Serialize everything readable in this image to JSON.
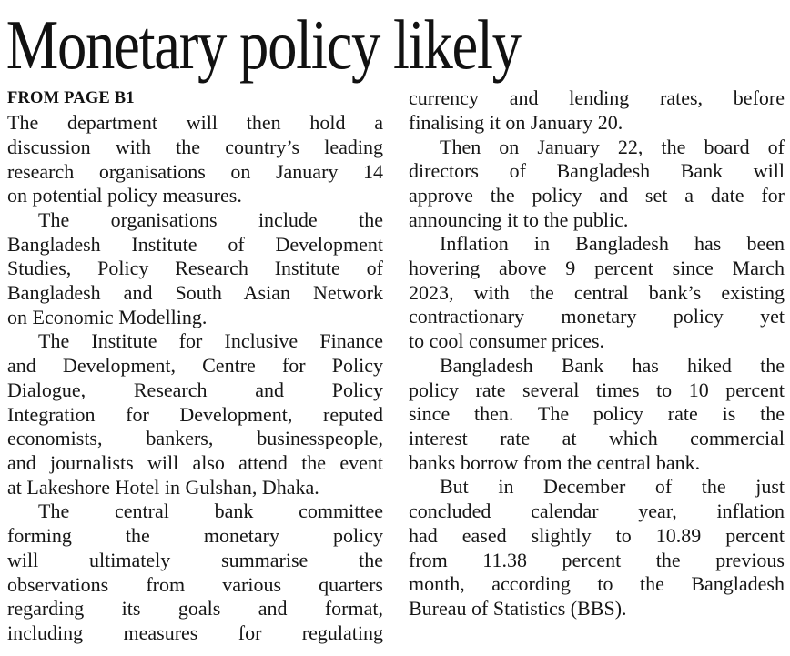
{
  "article": {
    "headline": "Monetary policy likely",
    "kicker": "FROM PAGE B1",
    "colors": {
      "background": "#ffffff",
      "text": "#161616"
    },
    "columns": [
      {
        "side": "left",
        "paragraphs": [
          {
            "indent": false,
            "continues": false,
            "lines": [
              "The department will then hold a",
              "discussion with the country’s leading",
              "research organisations on January 14",
              "on potential policy measures."
            ]
          },
          {
            "indent": true,
            "continues": false,
            "lines": [
              "The organisations include the",
              "Bangladesh Institute of Development",
              "Studies, Policy Research Institute of",
              "Bangladesh and South Asian Network",
              "on Economic Modelling."
            ]
          },
          {
            "indent": true,
            "continues": false,
            "lines": [
              "The Institute for Inclusive Finance",
              "and Development, Centre for Policy",
              "Dialogue, Research and Policy",
              "Integration for Development, reputed",
              "economists, bankers, businesspeople,",
              "and journalists will also attend the event",
              "at Lakeshore Hotel in Gulshan, Dhaka."
            ]
          },
          {
            "indent": true,
            "continues": true,
            "lines": [
              "The central bank committee",
              "forming the monetary policy",
              "will ultimately summarise the",
              "observations from various quarters",
              "regarding its goals and format,",
              "including measures for regulating"
            ]
          }
        ]
      },
      {
        "side": "right",
        "paragraphs": [
          {
            "indent": false,
            "continues": false,
            "lines": [
              "currency and lending rates, before",
              "finalising it on January 20."
            ]
          },
          {
            "indent": true,
            "continues": false,
            "lines": [
              "Then on January 22, the board of",
              "directors of Bangladesh Bank will",
              "approve the policy and set a date for",
              "announcing it to the public."
            ]
          },
          {
            "indent": true,
            "continues": false,
            "lines": [
              "Inflation in Bangladesh has been",
              "hovering above 9 percent since March",
              "2023, with the central bank’s existing",
              "contractionary monetary policy yet",
              "to cool consumer prices."
            ]
          },
          {
            "indent": true,
            "continues": false,
            "lines": [
              "Bangladesh Bank has hiked the",
              "policy rate several times to 10 percent",
              "since then. The policy rate is the",
              "interest rate at which commercial",
              "banks borrow from the central bank."
            ]
          },
          {
            "indent": true,
            "continues": false,
            "lines": [
              "But in December of the just",
              "concluded calendar year, inflation",
              "had eased slightly to 10.89 percent",
              "from 11.38 percent the previous",
              "month, according to the Bangladesh",
              "Bureau of Statistics (BBS)."
            ]
          }
        ]
      }
    ]
  }
}
